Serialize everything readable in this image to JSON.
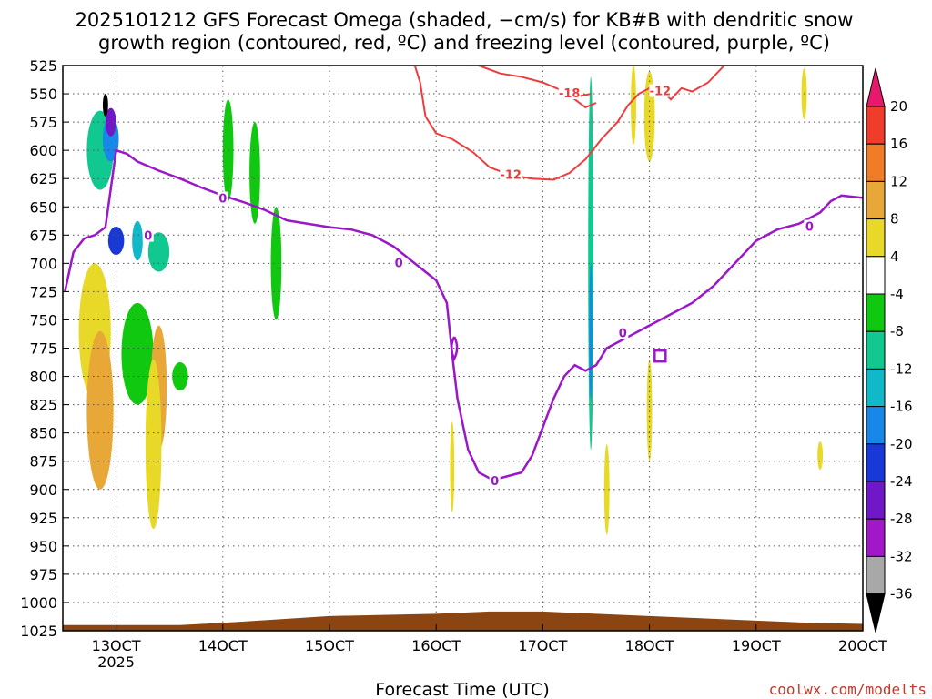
{
  "chart_data": {
    "type": "heatmap",
    "title_line1": "2025101212 GFS Forecast Omega (shaded, −cm/s) for KB#B with dendritic snow",
    "title_line2": "growth region (contoured, red, ºC) and freezing level (contoured, purple, ºC)",
    "xlabel": "Forecast Time (UTC)",
    "ylabel": "",
    "credit": "coolwx.com/modelts",
    "x_ticks": [
      {
        "label": "13OCT",
        "sublabel": "2025",
        "day": 13
      },
      {
        "label": "14OCT",
        "day": 14
      },
      {
        "label": "15OCT",
        "day": 15
      },
      {
        "label": "16OCT",
        "day": 16
      },
      {
        "label": "17OCT",
        "day": 17
      },
      {
        "label": "18OCT",
        "day": 18
      },
      {
        "label": "19OCT",
        "day": 19
      },
      {
        "label": "20OCT",
        "day": 20
      }
    ],
    "x_range_days": [
      12.5,
      20.0
    ],
    "y_ticks": [
      "525",
      "550",
      "575",
      "600",
      "625",
      "650",
      "675",
      "700",
      "725",
      "750",
      "775",
      "800",
      "825",
      "850",
      "875",
      "900",
      "925",
      "950",
      "975",
      "1000",
      "1025"
    ],
    "y_range_hpa": [
      525,
      1025
    ],
    "grid": true,
    "colorbar": {
      "labels": [
        "20",
        "16",
        "12",
        "8",
        "4",
        "-4",
        "-8",
        "-12",
        "-16",
        "-20",
        "-24",
        "-28",
        "-32",
        "-36"
      ],
      "colors": [
        "#e8186d",
        "#f03c2b",
        "#f07c28",
        "#e8a838",
        "#e8d828",
        "#ffffff",
        "#10c810",
        "#10c890",
        "#10b8c8",
        "#1888e8",
        "#1838d8",
        "#7018c8",
        "#a018c8",
        "#a8a8a8",
        "#000000"
      ]
    },
    "freezing_level": {
      "name": "0",
      "color": "#9b18c8",
      "points": [
        [
          12.52,
          725
        ],
        [
          12.6,
          690
        ],
        [
          12.7,
          678
        ],
        [
          12.8,
          675
        ],
        [
          12.9,
          668
        ],
        [
          13.0,
          600
        ],
        [
          13.1,
          603
        ],
        [
          13.2,
          610
        ],
        [
          13.4,
          618
        ],
        [
          13.6,
          625
        ],
        [
          13.8,
          633
        ],
        [
          14.0,
          640
        ],
        [
          14.2,
          646
        ],
        [
          14.4,
          653
        ],
        [
          14.6,
          662
        ],
        [
          14.8,
          665
        ],
        [
          15.0,
          668
        ],
        [
          15.2,
          670
        ],
        [
          15.4,
          675
        ],
        [
          15.6,
          685
        ],
        [
          15.8,
          700
        ],
        [
          16.0,
          715
        ],
        [
          16.1,
          735
        ],
        [
          16.15,
          780
        ],
        [
          16.2,
          820
        ],
        [
          16.3,
          865
        ],
        [
          16.4,
          885
        ],
        [
          16.5,
          890
        ],
        [
          16.6,
          890
        ],
        [
          16.8,
          885
        ],
        [
          16.9,
          870
        ],
        [
          17.0,
          845
        ],
        [
          17.1,
          820
        ],
        [
          17.2,
          800
        ],
        [
          17.3,
          790
        ],
        [
          17.4,
          795
        ],
        [
          17.5,
          790
        ],
        [
          17.6,
          775
        ],
        [
          17.8,
          765
        ],
        [
          18.0,
          755
        ],
        [
          18.2,
          745
        ],
        [
          18.4,
          735
        ],
        [
          18.6,
          720
        ],
        [
          18.8,
          700
        ],
        [
          19.0,
          680
        ],
        [
          19.2,
          670
        ],
        [
          19.4,
          665
        ],
        [
          19.6,
          655
        ],
        [
          19.7,
          645
        ],
        [
          19.8,
          640
        ],
        [
          20.0,
          642
        ]
      ],
      "labels": [
        {
          "text": "0",
          "x": 13.3,
          "p": 676
        },
        {
          "text": "0",
          "x": 14.0,
          "p": 643
        },
        {
          "text": "0",
          "x": 15.65,
          "p": 700
        },
        {
          "text": "0",
          "x": 16.55,
          "p": 893
        },
        {
          "text": "0",
          "x": 17.75,
          "p": 762
        },
        {
          "text": "0",
          "x": 19.5,
          "p": 668
        }
      ]
    },
    "dgz_contours": [
      {
        "name": "-12",
        "color": "#ef3b3b",
        "points": [
          [
            15.8,
            525
          ],
          [
            15.85,
            540
          ],
          [
            15.9,
            570
          ],
          [
            16.0,
            585
          ],
          [
            16.15,
            590
          ],
          [
            16.35,
            602
          ],
          [
            16.5,
            615
          ],
          [
            16.7,
            622
          ],
          [
            16.9,
            625
          ],
          [
            17.1,
            626
          ],
          [
            17.25,
            620
          ],
          [
            17.4,
            608
          ],
          [
            17.55,
            590
          ],
          [
            17.7,
            575
          ],
          [
            17.8,
            560
          ],
          [
            17.9,
            550
          ],
          [
            18.0,
            545
          ],
          [
            18.1,
            545
          ],
          [
            18.2,
            555
          ],
          [
            18.3,
            545
          ],
          [
            18.4,
            548
          ],
          [
            18.55,
            540
          ],
          [
            18.7,
            525
          ]
        ],
        "label": {
          "text": "-12",
          "x": 16.7,
          "p": 622
        }
      },
      {
        "name": "-12",
        "color": "#ef3b3b",
        "points": [
          [
            16.4,
            525
          ],
          [
            16.6,
            532
          ],
          [
            16.8,
            535
          ],
          [
            17.0,
            540
          ],
          [
            17.2,
            548
          ],
          [
            17.4,
            562
          ],
          [
            17.5,
            558
          ]
        ],
        "label": {
          "text": "-12",
          "x": 18.1,
          "p": 548
        }
      },
      {
        "name": "-18",
        "color": "#ef3b3b",
        "points": [
          [
            17.25,
            548
          ],
          [
            17.35,
            552
          ],
          [
            17.45,
            550
          ]
        ],
        "label": {
          "text": "-18",
          "x": 17.25,
          "p": 550
        }
      }
    ],
    "omega_blobs": [
      {
        "x": 12.85,
        "p": 600,
        "w": 0.25,
        "h": 70,
        "color": "#10c890"
      },
      {
        "x": 12.95,
        "p": 590,
        "w": 0.15,
        "h": 40,
        "color": "#1888e8"
      },
      {
        "x": 12.95,
        "p": 575,
        "w": 0.1,
        "h": 25,
        "color": "#7018c8"
      },
      {
        "x": 12.9,
        "p": 560,
        "w": 0.05,
        "h": 20,
        "color": "#000000"
      },
      {
        "x": 13.0,
        "p": 680,
        "w": 0.15,
        "h": 25,
        "color": "#1838d8"
      },
      {
        "x": 13.2,
        "p": 680,
        "w": 0.1,
        "h": 35,
        "color": "#10b8c8"
      },
      {
        "x": 13.4,
        "p": 690,
        "w": 0.2,
        "h": 35,
        "color": "#10c890"
      },
      {
        "x": 13.2,
        "p": 780,
        "w": 0.3,
        "h": 90,
        "color": "#10c810"
      },
      {
        "x": 13.6,
        "p": 800,
        "w": 0.15,
        "h": 25,
        "color": "#10c810"
      },
      {
        "x": 14.05,
        "p": 600,
        "w": 0.1,
        "h": 90,
        "color": "#10c810"
      },
      {
        "x": 14.3,
        "p": 620,
        "w": 0.1,
        "h": 90,
        "color": "#10c810"
      },
      {
        "x": 14.5,
        "p": 700,
        "w": 0.1,
        "h": 100,
        "color": "#10c810"
      },
      {
        "x": 12.8,
        "p": 760,
        "w": 0.3,
        "h": 120,
        "color": "#e8d828"
      },
      {
        "x": 12.85,
        "p": 830,
        "w": 0.25,
        "h": 140,
        "color": "#e8a838"
      },
      {
        "x": 13.4,
        "p": 810,
        "w": 0.15,
        "h": 110,
        "color": "#e8a838"
      },
      {
        "x": 13.35,
        "p": 860,
        "w": 0.15,
        "h": 150,
        "color": "#e8d828"
      },
      {
        "x": 17.45,
        "p": 700,
        "w": 0.05,
        "h": 330,
        "color": "#10c890"
      },
      {
        "x": 17.45,
        "p": 760,
        "w": 0.03,
        "h": 120,
        "color": "#1888e8"
      },
      {
        "x": 18.0,
        "p": 570,
        "w": 0.1,
        "h": 80,
        "color": "#e8d828"
      },
      {
        "x": 17.85,
        "p": 560,
        "w": 0.05,
        "h": 70,
        "color": "#e8d828"
      },
      {
        "x": 18.0,
        "p": 830,
        "w": 0.05,
        "h": 90,
        "color": "#e8d828"
      },
      {
        "x": 19.45,
        "p": 550,
        "w": 0.05,
        "h": 45,
        "color": "#e8d828"
      },
      {
        "x": 19.6,
        "p": 870,
        "w": 0.05,
        "h": 25,
        "color": "#e8d828"
      },
      {
        "x": 17.6,
        "p": 900,
        "w": 0.05,
        "h": 80,
        "color": "#e8d828"
      },
      {
        "x": 16.15,
        "p": 880,
        "w": 0.04,
        "h": 80,
        "color": "#e8d828"
      }
    ],
    "terrain": {
      "color": "#8b4513",
      "points": [
        [
          12.5,
          1020
        ],
        [
          13.0,
          1020
        ],
        [
          13.6,
          1020
        ],
        [
          14.0,
          1018
        ],
        [
          14.5,
          1015
        ],
        [
          15.0,
          1012
        ],
        [
          15.5,
          1011
        ],
        [
          16.0,
          1010
        ],
        [
          16.5,
          1008
        ],
        [
          17.0,
          1008
        ],
        [
          17.5,
          1010
        ],
        [
          18.0,
          1012
        ],
        [
          18.5,
          1014
        ],
        [
          19.0,
          1016
        ],
        [
          19.5,
          1018
        ],
        [
          20.0,
          1019
        ]
      ]
    },
    "closed_rect": {
      "x": 18.1,
      "p": 782,
      "color": "#9b18c8"
    }
  }
}
